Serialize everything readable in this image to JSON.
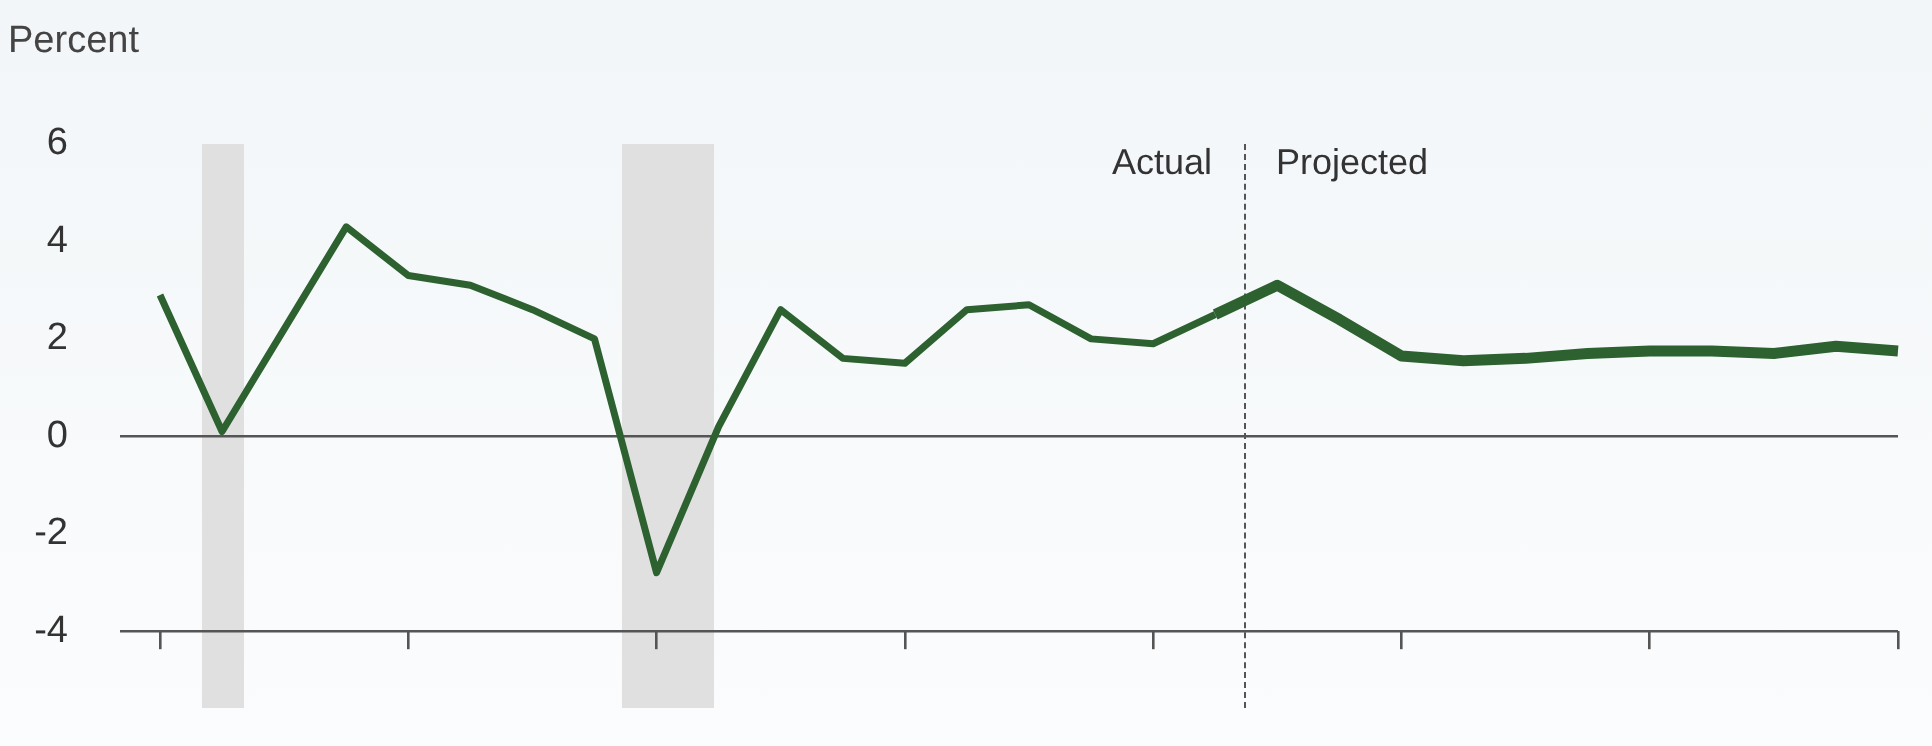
{
  "chart_data": {
    "type": "line",
    "ylabel": "Percent",
    "categories": [
      null,
      null,
      null,
      null,
      null,
      null,
      null,
      null,
      null,
      null,
      null,
      null,
      null,
      null,
      null,
      null,
      null,
      null,
      null,
      null,
      null,
      null,
      null,
      null,
      null,
      null,
      null,
      null,
      null
    ],
    "series": [
      {
        "color": "#2d6130",
        "values": [
          2.9,
          0.1,
          2.2,
          4.3,
          3.3,
          3.1,
          2.6,
          2.0,
          -2.8,
          0.2,
          2.6,
          1.6,
          1.5,
          2.6,
          2.7,
          2.0,
          1.9,
          2.5,
          null,
          null,
          null,
          null,
          null,
          null,
          null,
          null,
          null,
          null,
          null
        ]
      },
      {
        "color": "#2d6130",
        "values": [
          null,
          null,
          null,
          null,
          null,
          null,
          null,
          null,
          null,
          null,
          null,
          null,
          null,
          null,
          null,
          null,
          null,
          2.5,
          3.1,
          2.4,
          1.65,
          1.55,
          1.6,
          1.7,
          1.75,
          1.75,
          1.7,
          1.85,
          1.75
        ]
      }
    ],
    "ylim": [
      -4,
      6
    ],
    "yticks": [
      -4,
      -2,
      0,
      2,
      4,
      6
    ],
    "tick_labels": "y",
    "grid": false,
    "legend": false,
    "marker": "none",
    "line_style": "solid",
    "ref_lines": [
      {
        "axis": "y",
        "value": 0,
        "color": "#555555",
        "line_style": "solid"
      }
    ],
    "annotations": [
      "Actual",
      "Projected"
    ]
  }
}
